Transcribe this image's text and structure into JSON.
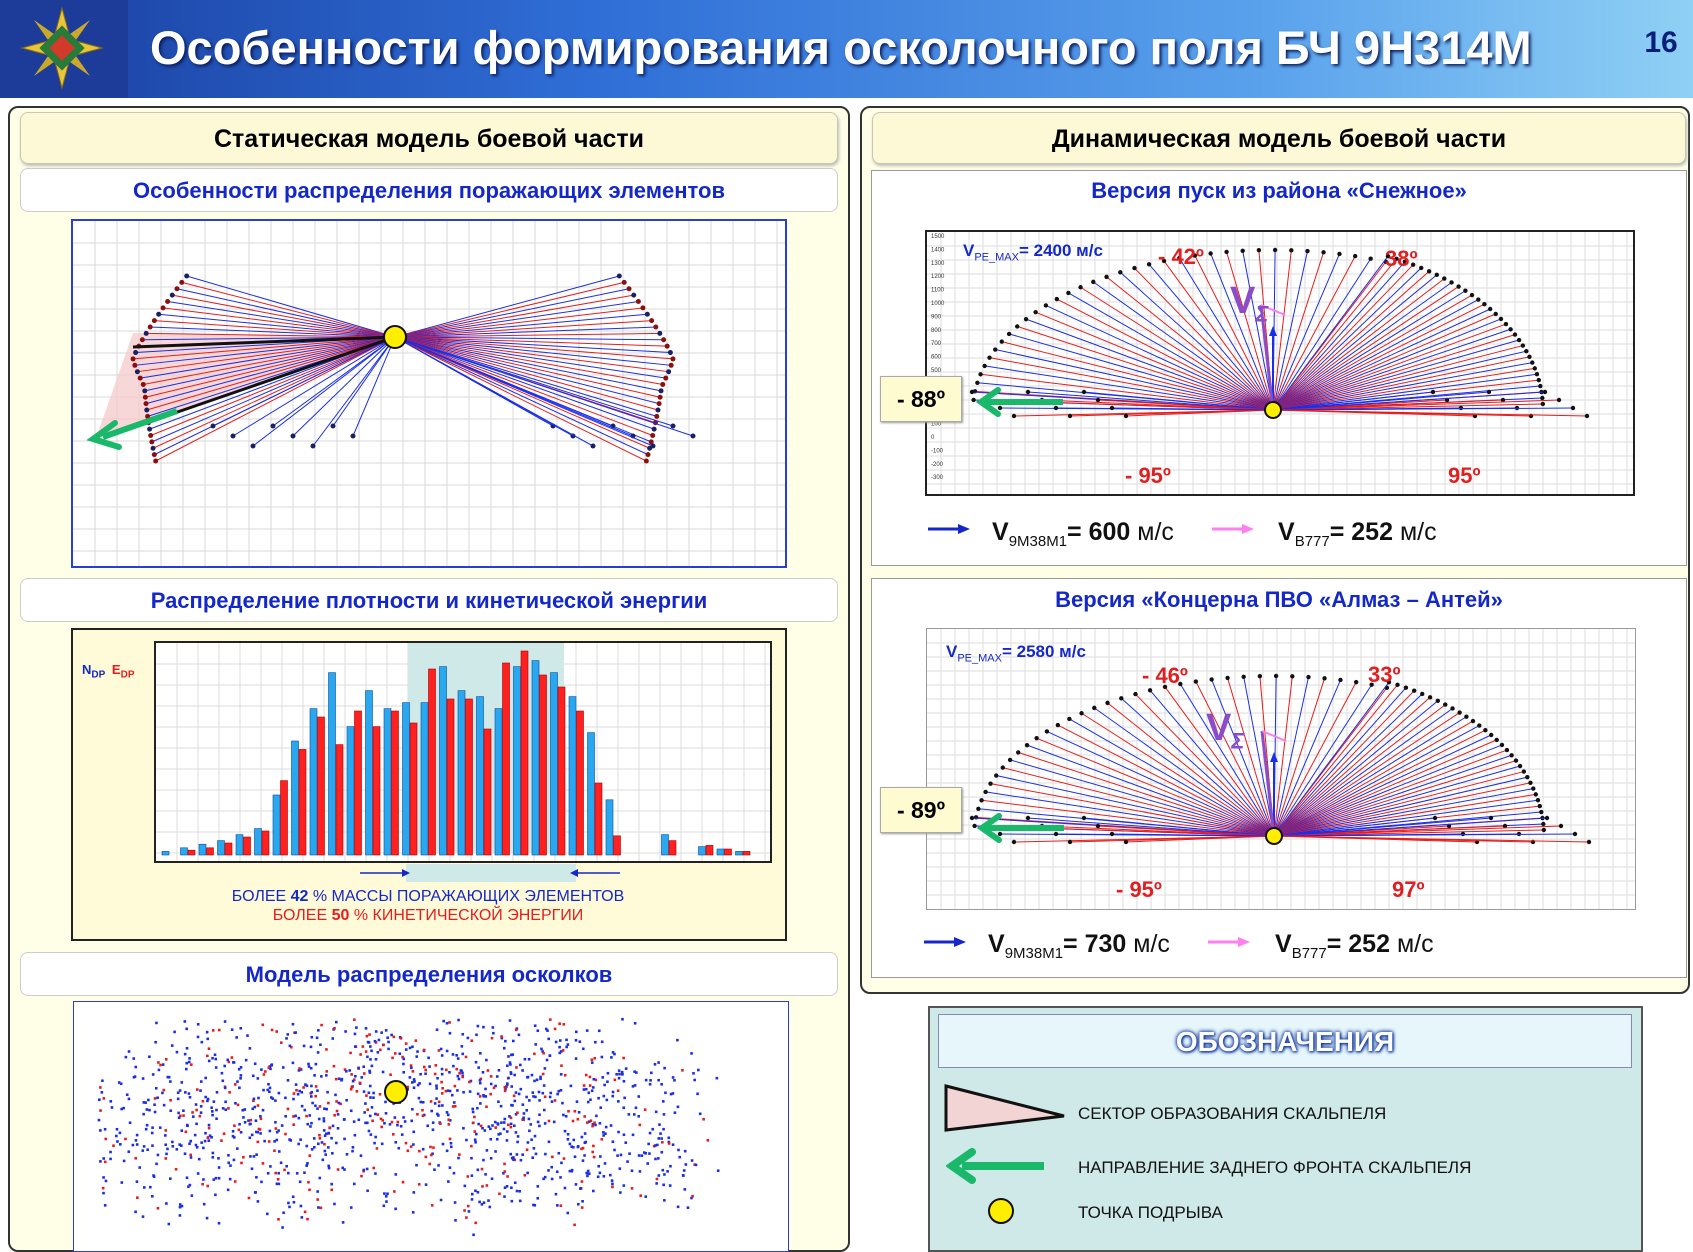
{
  "header": {
    "title": "Особенности формирования осколочного поля БЧ 9Н314М",
    "page": "16"
  },
  "left": {
    "heading": "Статическая модель боевой части",
    "sub1": "Особенности распределения поражающих элементов",
    "sub2": "Распределение плотности и кинетической энергии",
    "sub3": "Модель распределения осколков",
    "hist_axis_n": "N",
    "hist_axis_n_sub": "DP",
    "hist_axis_e": "E",
    "hist_axis_e_sub": "DP",
    "note1": {
      "pre": "БОЛЕЕ ",
      "num": "42",
      "post": " % МАССЫ ПОРАЖАЮЩИХ ЭЛЕМЕНТОВ"
    },
    "note2": {
      "pre": "БОЛЕЕ ",
      "num": "50",
      "post": " % КИНЕТИЧЕСКОЙ ЭНЕРГИИ"
    },
    "hist_blue": [
      3,
      6,
      9,
      12,
      17,
      22,
      50,
      95,
      122,
      152,
      107,
      137,
      122,
      127,
      127,
      157,
      137,
      132,
      122,
      157,
      162,
      152,
      132,
      102,
      46,
      0,
      0,
      17,
      0,
      7,
      5,
      3
    ],
    "hist_red": [
      0,
      4,
      6,
      10,
      15,
      20,
      62,
      88,
      115,
      92,
      120,
      107,
      120,
      110,
      155,
      130,
      130,
      105,
      160,
      170,
      150,
      140,
      120,
      60,
      16,
      0,
      0,
      12,
      0,
      8,
      5,
      3
    ]
  },
  "right": {
    "heading": "Динамическая модель боевой части",
    "v1": {
      "title": "Версия пуск из района «Снежное»",
      "vmax_pre": "V",
      "vmax_sub": "PE_MAX",
      "vmax_val": "= 2400 м/с",
      "a_left_top": "- 42º",
      "a_right_top": "38º",
      "a_left_side": "- 88º",
      "a_left_bottom": "- 95º",
      "a_right_bottom": "95º",
      "vsum": "V",
      "vsum_sub": "Σ",
      "missile": {
        "pre": "V",
        "sub": "9М38М1",
        "val": "= 600",
        "unit": " м/с"
      },
      "plane": {
        "pre": "V",
        "sub": "B777",
        "val": "= 252",
        "unit": " м/с"
      },
      "yticks": [
        "1500",
        "1400",
        "1300",
        "1200",
        "1100",
        "1000",
        "900",
        "800",
        "700",
        "600",
        "500",
        "400",
        "300",
        "200",
        "100",
        "0",
        "-100",
        "-200",
        "-300"
      ]
    },
    "v2": {
      "title": "Версия «Концерна ПВО «Алмаз – Антей»",
      "vmax_pre": "V",
      "vmax_sub": "PE_MAX",
      "vmax_val": "= 2580 м/с",
      "a_left_top": "- 46º",
      "a_right_top": "33º",
      "a_left_side": "- 89º",
      "a_left_bottom": "- 95º",
      "a_right_bottom": "97º",
      "vsum": "V",
      "vsum_sub": "Σ",
      "missile": {
        "pre": "V",
        "sub": "9М38М1",
        "val": "= 730",
        "unit": " м/с"
      },
      "plane": {
        "pre": "V",
        "sub": "B777",
        "val": "= 252",
        "unit": " м/с"
      }
    }
  },
  "legend": {
    "title": "ОБОЗНАЧЕНИЯ",
    "item1": "СЕКТОР ОБРАЗОВАНИЯ СКАЛЬПЕЛЯ",
    "item2": "НАПРАВЛЕНИЕ ЗАДНЕГО ФРОНТА СКАЛЬПЕЛЯ",
    "item3": "ТОЧКА ПОДРЫВА"
  },
  "colors": {
    "blue": "#1a2ee8",
    "red": "#e81c1c",
    "green": "#19b86a",
    "yellow": "#ffee00",
    "violet": "#8a4cc8",
    "pink": "#ff7ef0"
  }
}
